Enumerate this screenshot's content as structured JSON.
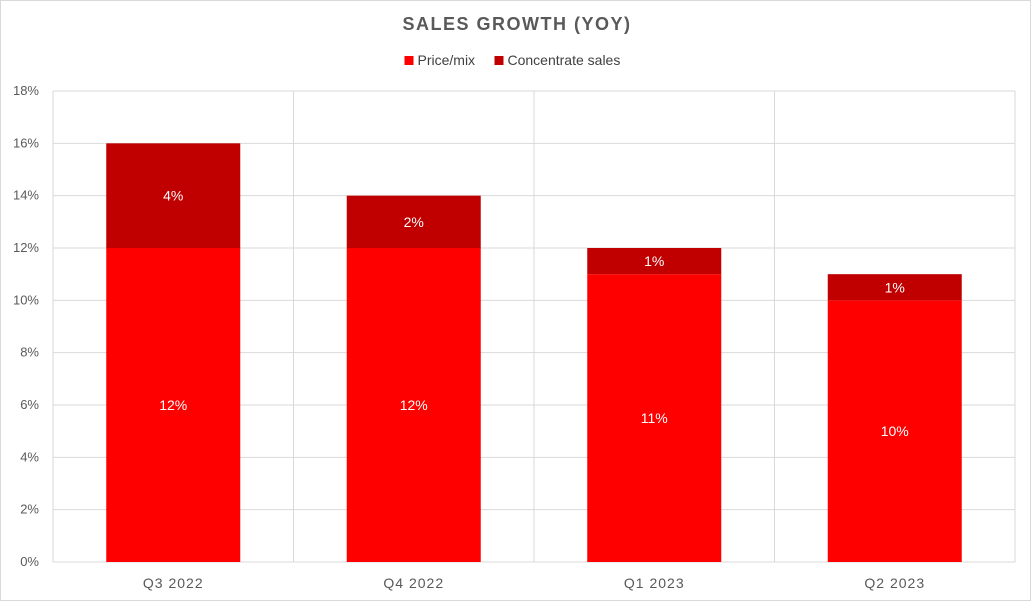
{
  "chart_data": {
    "type": "bar",
    "stacked": true,
    "title": "SALES GROWTH (YOY)",
    "categories": [
      "Q3 2022",
      "Q4 2022",
      "Q1 2023",
      "Q2 2023"
    ],
    "series": [
      {
        "name": "Price/mix",
        "values": [
          12,
          12,
          11,
          10
        ],
        "labels": [
          "12%",
          "12%",
          "11%",
          "10%"
        ],
        "color": "#ff0000"
      },
      {
        "name": "Concentrate sales",
        "values": [
          4,
          2,
          1,
          1
        ],
        "labels": [
          "4%",
          "2%",
          "1%",
          "1%"
        ],
        "color": "#c00000"
      }
    ],
    "ylim": [
      0,
      18
    ],
    "yticks": [
      0,
      2,
      4,
      6,
      8,
      10,
      12,
      14,
      16,
      18
    ],
    "yticklabels": [
      "0%",
      "2%",
      "4%",
      "6%",
      "8%",
      "10%",
      "12%",
      "14%",
      "16%",
      "18%"
    ],
    "grid": true,
    "legend_position": "top",
    "xlabel": "",
    "ylabel": ""
  }
}
